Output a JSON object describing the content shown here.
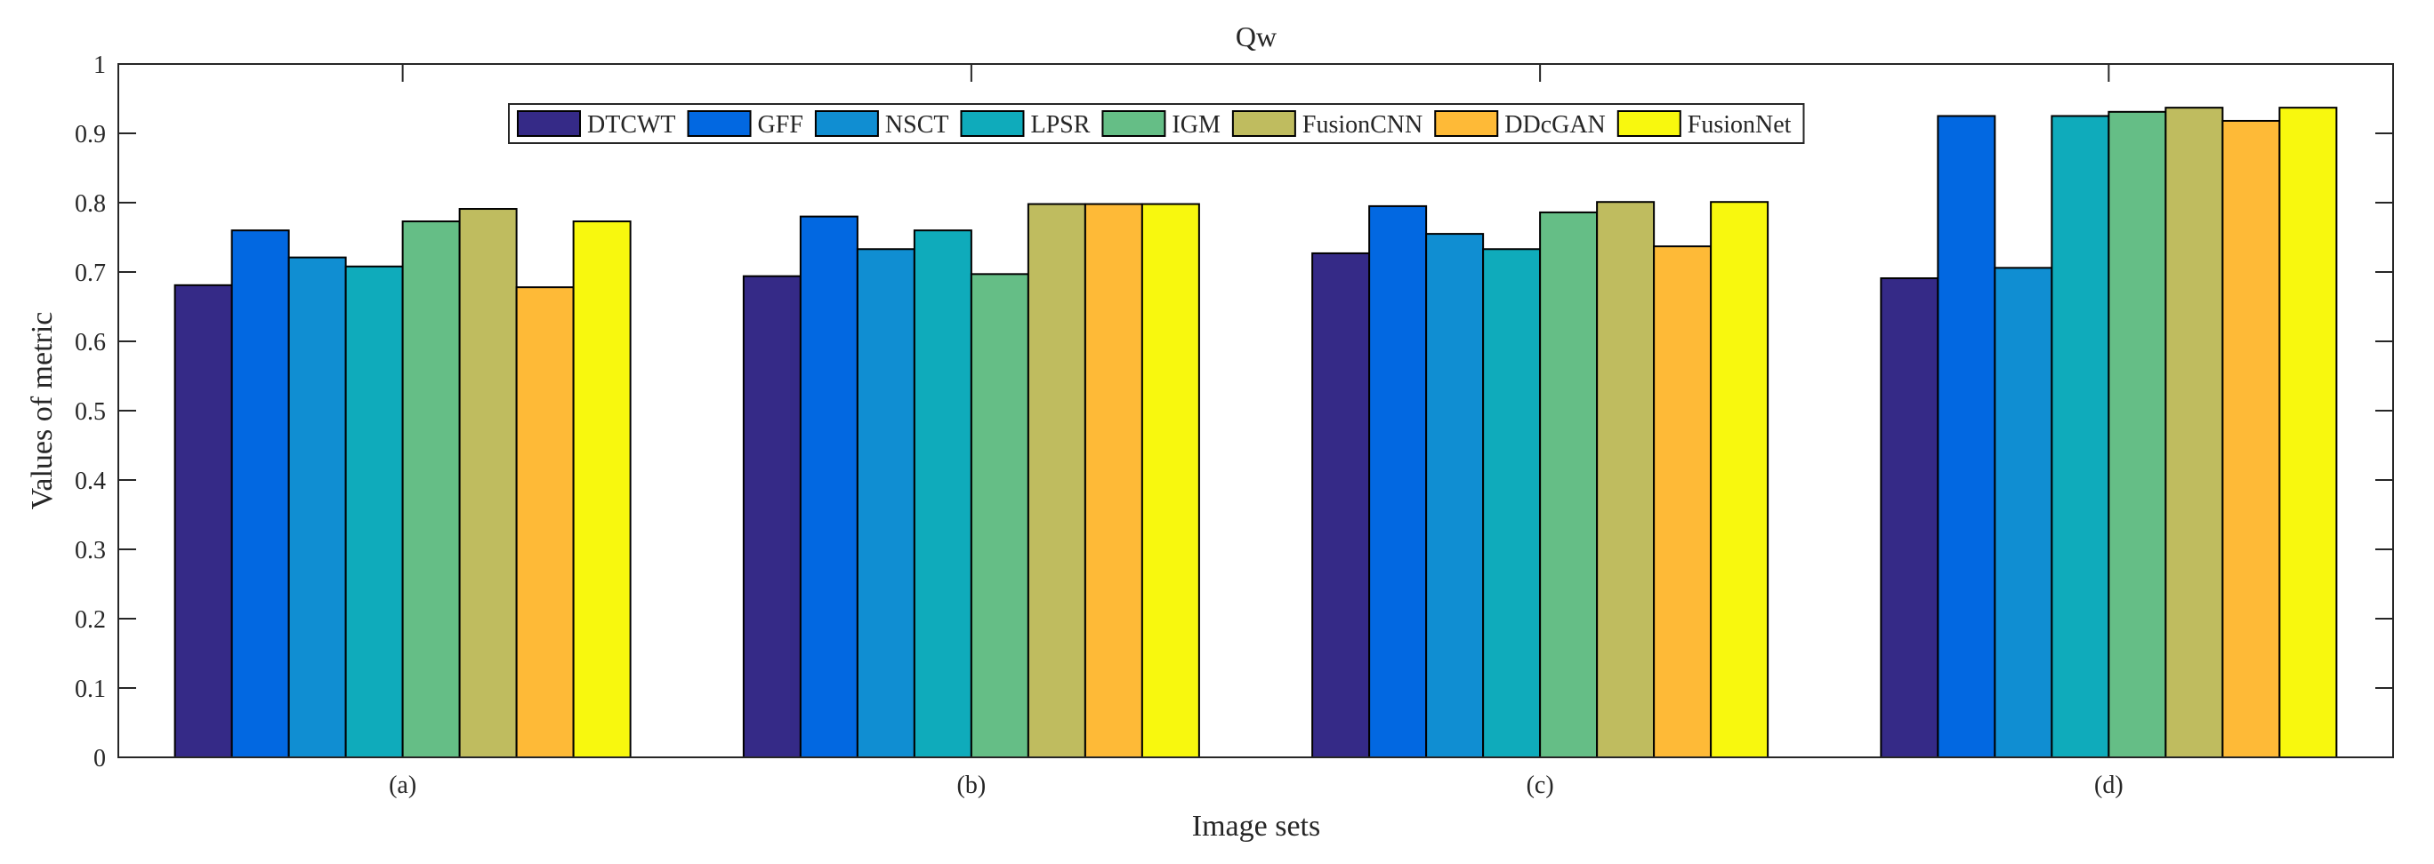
{
  "chart_data": {
    "type": "bar",
    "title": "Qw",
    "xlabel": "Image sets",
    "ylabel": "Values of metric",
    "ylim": [
      0,
      1
    ],
    "yticks": [
      "0",
      "0.1",
      "0.2",
      "0.3",
      "0.4",
      "0.5",
      "0.6",
      "0.7",
      "0.8",
      "0.9",
      "1"
    ],
    "categories": [
      "(a)",
      "(b)",
      "(c)",
      "(d)"
    ],
    "legend_position": "top",
    "series": [
      {
        "name": "DTCWT",
        "color": "#352a87",
        "values": [
          0.681,
          0.694,
          0.727,
          0.691
        ]
      },
      {
        "name": "GFF",
        "color": "#0268e1",
        "values": [
          0.76,
          0.78,
          0.795,
          0.925
        ]
      },
      {
        "name": "NSCT",
        "color": "#108ed2",
        "values": [
          0.721,
          0.733,
          0.755,
          0.706
        ]
      },
      {
        "name": "LPSR",
        "color": "#0fabbb",
        "values": [
          0.708,
          0.76,
          0.733,
          0.925
        ]
      },
      {
        "name": "IGM",
        "color": "#65be86",
        "values": [
          0.773,
          0.697,
          0.786,
          0.931
        ]
      },
      {
        "name": "FusionCNN",
        "color": "#bfbc5f",
        "values": [
          0.791,
          0.798,
          0.801,
          0.937
        ]
      },
      {
        "name": "DDcGAN",
        "color": "#feba37",
        "values": [
          0.678,
          0.798,
          0.737,
          0.918
        ]
      },
      {
        "name": "FusionNet",
        "color": "#f8f80e",
        "values": [
          0.773,
          0.798,
          0.801,
          0.937
        ]
      }
    ]
  }
}
